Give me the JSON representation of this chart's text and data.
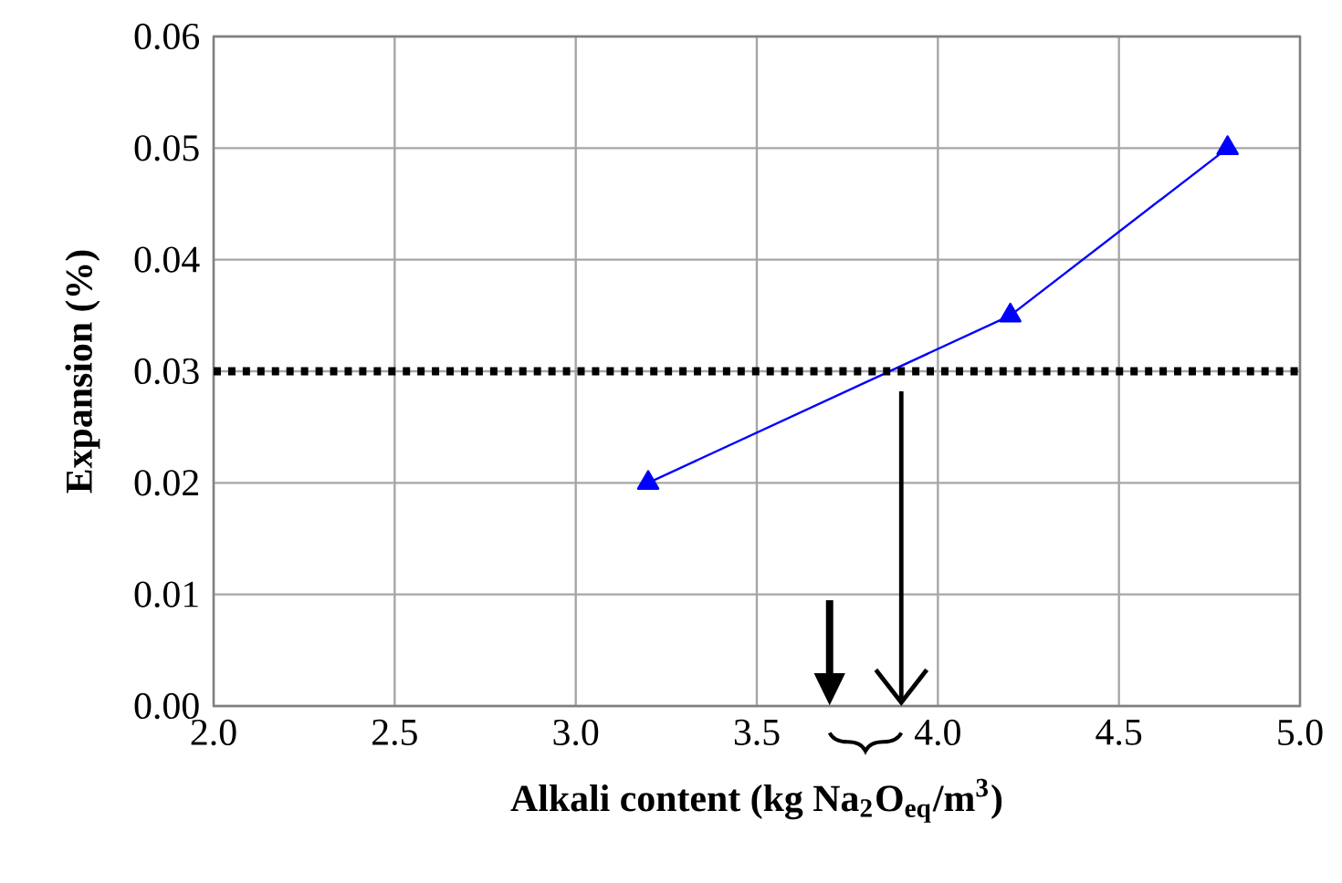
{
  "chart_data": {
    "type": "line",
    "xlabel": "Alkali content (kg Na$_{2}$O$_{eq}$/m$^{3}$)",
    "ylabel": "Expansion (%)",
    "series": [
      {
        "color": "#0000ff",
        "x": [
          3.2,
          4.2,
          4.8
        ],
        "values": [
          0.02,
          0.035,
          0.05
        ]
      }
    ],
    "xlim": [
      2,
      5
    ],
    "xticks": [
      {
        "value": 2,
        "label": "2.0"
      },
      {
        "value": 2.5,
        "label": "2.5"
      },
      {
        "value": 3,
        "label": "3.0"
      },
      {
        "value": 3.5,
        "label": "3.5"
      },
      {
        "value": 4,
        "label": "4.0"
      },
      {
        "value": 4.5,
        "label": "4.5"
      },
      {
        "value": 5,
        "label": "5.0"
      }
    ],
    "ylim": [
      0,
      0.06
    ],
    "yticks": [
      {
        "value": 0,
        "label": "0.00"
      },
      {
        "value": 0.01,
        "label": "0.01"
      },
      {
        "value": 0.02,
        "label": "0.02"
      },
      {
        "value": 0.03,
        "label": "0.03"
      },
      {
        "value": 0.04,
        "label": "0.04"
      },
      {
        "value": 0.05,
        "label": "0.05"
      },
      {
        "value": 0.06,
        "label": "0.06"
      }
    ],
    "ref_lines": [
      {
        "axis": "y",
        "value": 0.03,
        "color": "#000000",
        "line_style": "dotted"
      }
    ],
    "grid": true,
    "marker": "triangle",
    "line_style": "solid"
  }
}
